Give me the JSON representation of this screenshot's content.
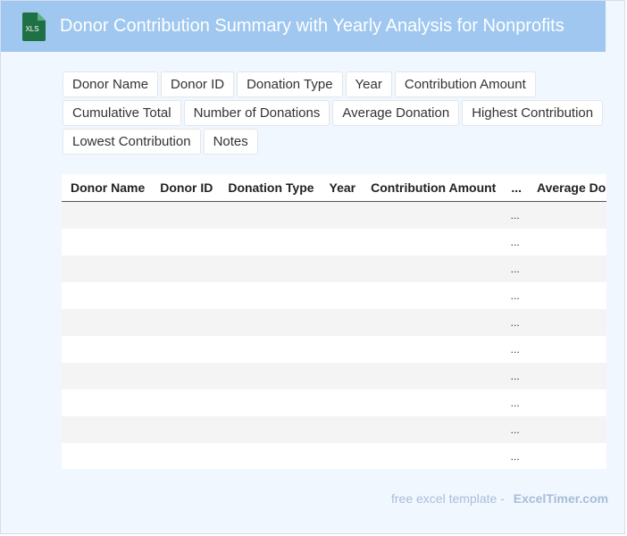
{
  "header": {
    "title": "Donor Contribution Summary with Yearly Analysis for Nonprofits",
    "icon": "xls-file-icon",
    "icon_label": "XLS",
    "background": "#9fc7ef",
    "icon_color": "#1e7145"
  },
  "fields": [
    "Donor Name",
    "Donor ID",
    "Donation Type",
    "Year",
    "Contribution Amount",
    "Cumulative Total",
    "Number of Donations",
    "Average Donation",
    "Highest Contribution",
    "Lowest Contribution",
    "Notes"
  ],
  "table": {
    "columns": [
      "Donor Name",
      "Donor ID",
      "Donation Type",
      "Year",
      "Contribution Amount",
      "...",
      "Average Donat"
    ],
    "rows": [
      [
        "",
        "",
        "",
        "",
        "",
        "...",
        ""
      ],
      [
        "",
        "",
        "",
        "",
        "",
        "...",
        ""
      ],
      [
        "",
        "",
        "",
        "",
        "",
        "...",
        ""
      ],
      [
        "",
        "",
        "",
        "",
        "",
        "...",
        ""
      ],
      [
        "",
        "",
        "",
        "",
        "",
        "...",
        ""
      ],
      [
        "",
        "",
        "",
        "",
        "",
        "...",
        ""
      ],
      [
        "",
        "",
        "",
        "",
        "",
        "...",
        ""
      ],
      [
        "",
        "",
        "",
        "",
        "",
        "...",
        ""
      ],
      [
        "",
        "",
        "",
        "",
        "",
        "...",
        ""
      ],
      [
        "",
        "",
        "",
        "",
        "",
        "...",
        ""
      ]
    ]
  },
  "footer": {
    "text": "free excel template -",
    "brand": "ExcelTimer.com"
  }
}
